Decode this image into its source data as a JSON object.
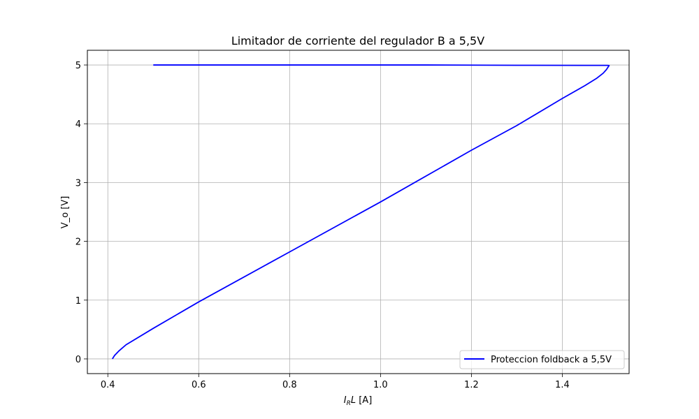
{
  "chart_data": {
    "type": "line",
    "title": "Limitador de corriente del regulador B a 5,5V",
    "xlabel_main": "I",
    "xlabel_sub": "R",
    "xlabel_rest": "L",
    "xlabel_unit": " [A]",
    "ylabel": "V_o [V]",
    "xlim": [
      0.355,
      1.547
    ],
    "ylim": [
      -0.25,
      5.25
    ],
    "xticks": [
      0.4,
      0.6,
      0.8,
      1.0,
      1.2,
      1.4
    ],
    "xtick_labels": [
      "0.4",
      "0.6",
      "0.8",
      "1.0",
      "1.2",
      "1.4"
    ],
    "yticks": [
      0,
      1,
      2,
      3,
      4,
      5
    ],
    "ytick_labels": [
      "0",
      "1",
      "2",
      "3",
      "4",
      "5"
    ],
    "grid": true,
    "legend_position": "lower-right",
    "series": [
      {
        "name": "Proteccion foldback a 5,5V",
        "color": "#0000ff",
        "x": [
          0.5,
          0.7,
          0.9,
          1.1,
          1.3,
          1.45,
          1.48,
          1.5,
          1.503,
          1.497,
          1.49,
          1.475,
          1.45,
          1.4,
          1.3,
          1.2,
          1.0,
          0.8,
          0.6,
          0.5,
          0.44,
          0.425,
          0.415,
          0.41
        ],
        "y": [
          5.0,
          5.0,
          5.0,
          5.0,
          4.995,
          4.993,
          4.993,
          4.993,
          4.99,
          4.92,
          4.86,
          4.77,
          4.65,
          4.43,
          3.97,
          3.55,
          2.67,
          1.82,
          0.97,
          0.52,
          0.24,
          0.14,
          0.06,
          0.0
        ]
      }
    ]
  }
}
